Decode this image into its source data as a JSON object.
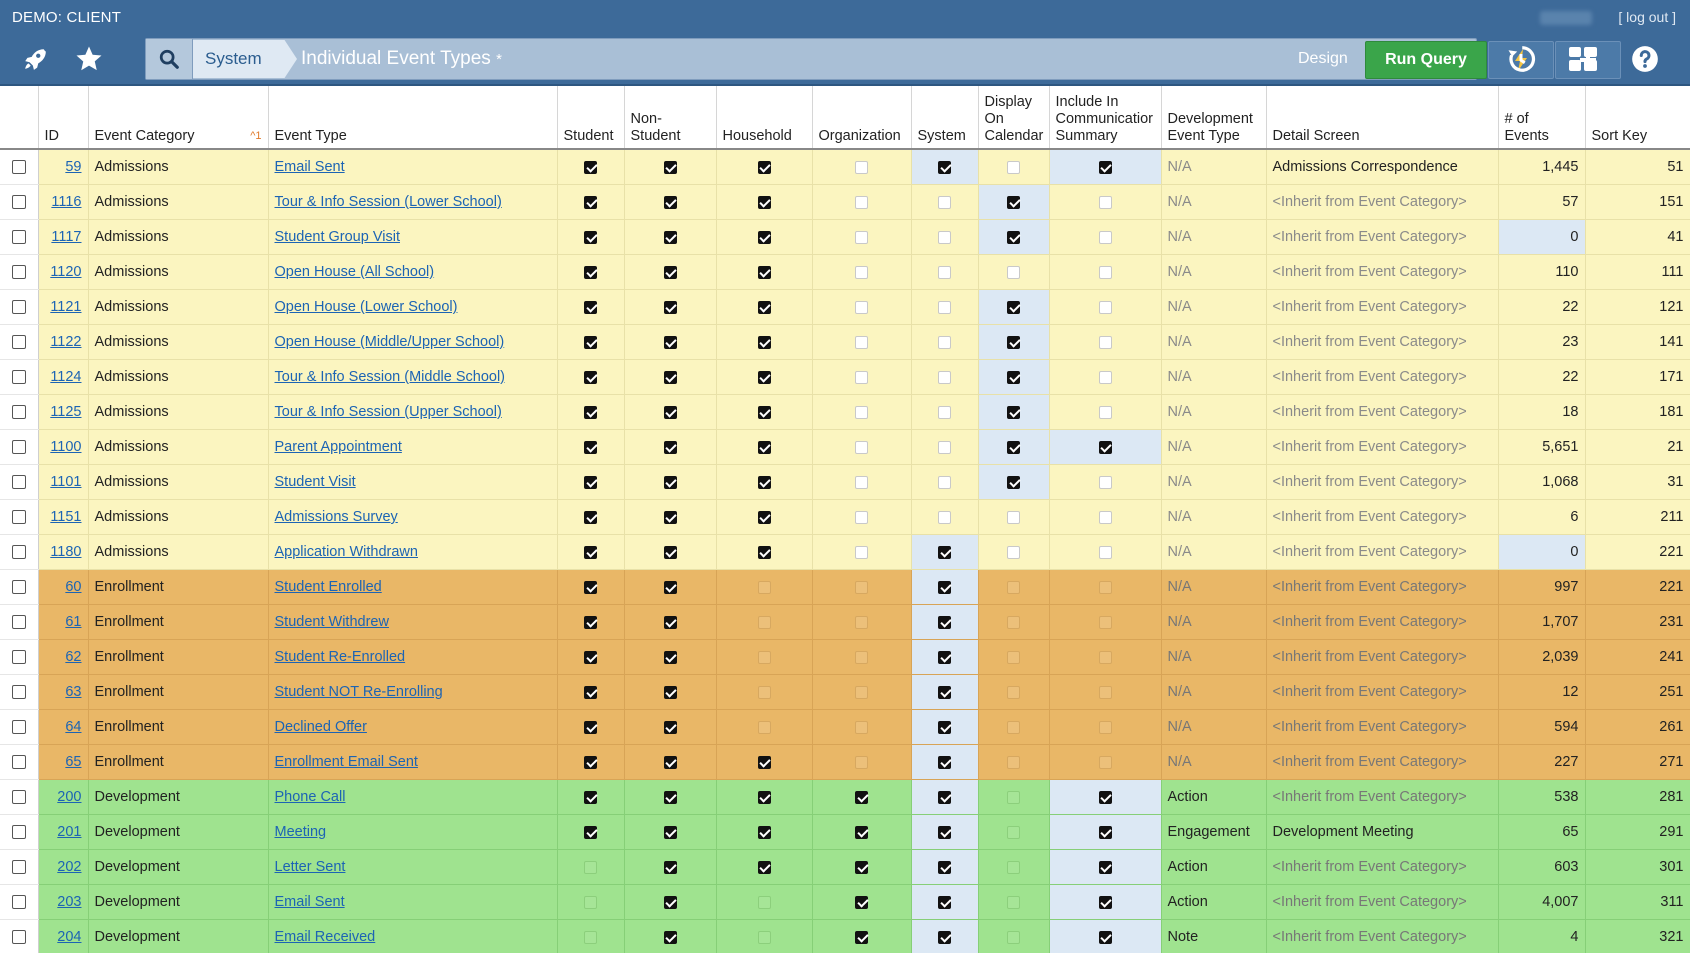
{
  "app": {
    "client_label": "DEMO: CLIENT",
    "logout": "[ log out ]"
  },
  "nav": {
    "crumb_system": "System",
    "page_title": "Individual Event Types",
    "unsaved_marker": "*",
    "design": "Design",
    "run_query": "Run Query"
  },
  "columns": [
    "ID",
    "Event Category",
    "Event Type",
    "Student",
    "Non-\nStudent",
    "Household",
    "Organization",
    "System",
    "Display\nOn\nCalendar",
    "Include In\nCommunicatior\nSummary",
    "Development\nEvent Type",
    "Detail Screen",
    "# of\nEvents",
    "Sort Key"
  ],
  "sort_indicator": "^1",
  "colors": {
    "admissions": "#fbf5c0",
    "enrollment": "#e9b767",
    "development": "#9fe38f",
    "highlight": "#dce8f4",
    "link": "#1c64b4",
    "run_query": "#3aa54a"
  },
  "rows": [
    {
      "id": "59",
      "cat": "Admissions",
      "type": "Email Sent",
      "student": true,
      "nonstudent": true,
      "household": true,
      "org": false,
      "system": true,
      "calendar": false,
      "summary": true,
      "devtype": "N/A",
      "detail": "Admissions Correspondence",
      "events": "1,445",
      "sort": "51",
      "hl": [
        "system",
        "summary"
      ]
    },
    {
      "id": "1116",
      "cat": "Admissions",
      "type": "Tour & Info Session (Lower School)",
      "student": true,
      "nonstudent": true,
      "household": true,
      "org": false,
      "system": false,
      "calendar": true,
      "summary": false,
      "devtype": "N/A",
      "detail": "<Inherit from Event Category>",
      "events": "57",
      "sort": "151",
      "hl": [
        "calendar"
      ]
    },
    {
      "id": "1117",
      "cat": "Admissions",
      "type": "Student Group Visit",
      "student": true,
      "nonstudent": true,
      "household": true,
      "org": false,
      "system": false,
      "calendar": true,
      "summary": false,
      "devtype": "N/A",
      "detail": "<Inherit from Event Category>",
      "events": "0",
      "sort": "41",
      "hl": [
        "calendar",
        "events"
      ]
    },
    {
      "id": "1120",
      "cat": "Admissions",
      "type": "Open House (All School)",
      "student": true,
      "nonstudent": true,
      "household": true,
      "org": false,
      "system": false,
      "calendar": false,
      "summary": false,
      "devtype": "N/A",
      "detail": "<Inherit from Event Category>",
      "events": "110",
      "sort": "111",
      "hl": []
    },
    {
      "id": "1121",
      "cat": "Admissions",
      "type": "Open House (Lower School)",
      "student": true,
      "nonstudent": true,
      "household": true,
      "org": false,
      "system": false,
      "calendar": true,
      "summary": false,
      "devtype": "N/A",
      "detail": "<Inherit from Event Category>",
      "events": "22",
      "sort": "121",
      "hl": [
        "calendar"
      ]
    },
    {
      "id": "1122",
      "cat": "Admissions",
      "type": "Open House (Middle/Upper School)",
      "student": true,
      "nonstudent": true,
      "household": true,
      "org": false,
      "system": false,
      "calendar": true,
      "summary": false,
      "devtype": "N/A",
      "detail": "<Inherit from Event Category>",
      "events": "23",
      "sort": "141",
      "hl": [
        "calendar"
      ]
    },
    {
      "id": "1124",
      "cat": "Admissions",
      "type": "Tour & Info Session (Middle School)",
      "student": true,
      "nonstudent": true,
      "household": true,
      "org": false,
      "system": false,
      "calendar": true,
      "summary": false,
      "devtype": "N/A",
      "detail": "<Inherit from Event Category>",
      "events": "22",
      "sort": "171",
      "hl": [
        "calendar"
      ]
    },
    {
      "id": "1125",
      "cat": "Admissions",
      "type": "Tour & Info Session (Upper School)",
      "student": true,
      "nonstudent": true,
      "household": true,
      "org": false,
      "system": false,
      "calendar": true,
      "summary": false,
      "devtype": "N/A",
      "detail": "<Inherit from Event Category>",
      "events": "18",
      "sort": "181",
      "hl": [
        "calendar"
      ]
    },
    {
      "id": "1100",
      "cat": "Admissions",
      "type": "Parent Appointment",
      "student": true,
      "nonstudent": true,
      "household": true,
      "org": false,
      "system": false,
      "calendar": true,
      "summary": true,
      "devtype": "N/A",
      "detail": "<Inherit from Event Category>",
      "events": "5,651",
      "sort": "21",
      "hl": [
        "calendar",
        "summary"
      ]
    },
    {
      "id": "1101",
      "cat": "Admissions",
      "type": "Student Visit",
      "student": true,
      "nonstudent": true,
      "household": true,
      "org": false,
      "system": false,
      "calendar": true,
      "summary": false,
      "devtype": "N/A",
      "detail": "<Inherit from Event Category>",
      "events": "1,068",
      "sort": "31",
      "hl": [
        "calendar"
      ]
    },
    {
      "id": "1151",
      "cat": "Admissions",
      "type": "Admissions Survey",
      "student": true,
      "nonstudent": true,
      "household": true,
      "org": false,
      "system": false,
      "calendar": false,
      "summary": false,
      "devtype": "N/A",
      "detail": "<Inherit from Event Category>",
      "events": "6",
      "sort": "211",
      "hl": []
    },
    {
      "id": "1180",
      "cat": "Admissions",
      "type": "Application Withdrawn",
      "student": true,
      "nonstudent": true,
      "household": true,
      "org": false,
      "system": true,
      "calendar": false,
      "summary": false,
      "devtype": "N/A",
      "detail": "<Inherit from Event Category>",
      "events": "0",
      "sort": "221",
      "hl": [
        "system",
        "events"
      ]
    },
    {
      "id": "60",
      "cat": "Enrollment",
      "type": "Student Enrolled",
      "student": true,
      "nonstudent": true,
      "household": false,
      "org": false,
      "system": true,
      "calendar": false,
      "summary": false,
      "devtype": "N/A",
      "detail": "<Inherit from Event Category>",
      "events": "997",
      "sort": "221",
      "hl": [
        "system"
      ]
    },
    {
      "id": "61",
      "cat": "Enrollment",
      "type": "Student Withdrew",
      "student": true,
      "nonstudent": true,
      "household": false,
      "org": false,
      "system": true,
      "calendar": false,
      "summary": false,
      "devtype": "N/A",
      "detail": "<Inherit from Event Category>",
      "events": "1,707",
      "sort": "231",
      "hl": [
        "system"
      ]
    },
    {
      "id": "62",
      "cat": "Enrollment",
      "type": "Student Re-Enrolled",
      "student": true,
      "nonstudent": true,
      "household": false,
      "org": false,
      "system": true,
      "calendar": false,
      "summary": false,
      "devtype": "N/A",
      "detail": "<Inherit from Event Category>",
      "events": "2,039",
      "sort": "241",
      "hl": [
        "system"
      ]
    },
    {
      "id": "63",
      "cat": "Enrollment",
      "type": "Student NOT Re-Enrolling",
      "student": true,
      "nonstudent": true,
      "household": false,
      "org": false,
      "system": true,
      "calendar": false,
      "summary": false,
      "devtype": "N/A",
      "detail": "<Inherit from Event Category>",
      "events": "12",
      "sort": "251",
      "hl": [
        "system"
      ]
    },
    {
      "id": "64",
      "cat": "Enrollment",
      "type": "Declined Offer",
      "student": true,
      "nonstudent": true,
      "household": false,
      "org": false,
      "system": true,
      "calendar": false,
      "summary": false,
      "devtype": "N/A",
      "detail": "<Inherit from Event Category>",
      "events": "594",
      "sort": "261",
      "hl": [
        "system"
      ]
    },
    {
      "id": "65",
      "cat": "Enrollment",
      "type": "Enrollment Email Sent",
      "student": true,
      "nonstudent": true,
      "household": true,
      "org": false,
      "system": true,
      "calendar": false,
      "summary": false,
      "devtype": "N/A",
      "detail": "<Inherit from Event Category>",
      "events": "227",
      "sort": "271",
      "hl": [
        "system"
      ]
    },
    {
      "id": "200",
      "cat": "Development",
      "type": "Phone Call",
      "student": true,
      "nonstudent": true,
      "household": true,
      "org": true,
      "system": true,
      "calendar": false,
      "summary": true,
      "devtype": "Action",
      "detail": "<Inherit from Event Category>",
      "events": "538",
      "sort": "281",
      "hl": [
        "system",
        "summary"
      ]
    },
    {
      "id": "201",
      "cat": "Development",
      "type": "Meeting",
      "student": true,
      "nonstudent": true,
      "household": true,
      "org": true,
      "system": true,
      "calendar": false,
      "summary": true,
      "devtype": "Engagement",
      "detail": "Development Meeting",
      "events": "65",
      "sort": "291",
      "hl": [
        "system",
        "summary"
      ]
    },
    {
      "id": "202",
      "cat": "Development",
      "type": "Letter Sent",
      "student": false,
      "nonstudent": true,
      "household": true,
      "org": true,
      "system": true,
      "calendar": false,
      "summary": true,
      "devtype": "Action",
      "detail": "<Inherit from Event Category>",
      "events": "603",
      "sort": "301",
      "hl": [
        "system",
        "summary"
      ]
    },
    {
      "id": "203",
      "cat": "Development",
      "type": "Email Sent",
      "student": false,
      "nonstudent": true,
      "household": false,
      "org": true,
      "system": true,
      "calendar": false,
      "summary": true,
      "devtype": "Action",
      "detail": "<Inherit from Event Category>",
      "events": "4,007",
      "sort": "311",
      "hl": [
        "system",
        "summary"
      ]
    },
    {
      "id": "204",
      "cat": "Development",
      "type": "Email Received",
      "student": false,
      "nonstudent": true,
      "household": false,
      "org": true,
      "system": true,
      "calendar": false,
      "summary": true,
      "devtype": "Note",
      "detail": "<Inherit from Event Category>",
      "events": "4",
      "sort": "321",
      "hl": [
        "system",
        "summary"
      ]
    }
  ]
}
